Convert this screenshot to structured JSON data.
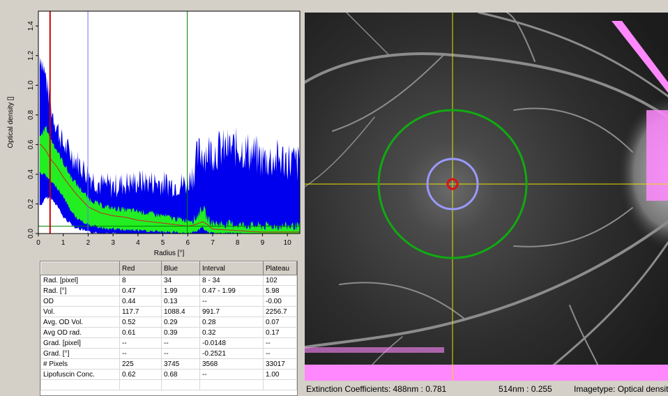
{
  "chart_data": {
    "type": "line",
    "xlabel": "Radius [°]",
    "ylabel": "Optical density []",
    "xlim": [
      0,
      10.5
    ],
    "ylim": [
      0,
      1.5
    ],
    "x_ticks": [
      "0",
      "1",
      "2",
      "3",
      "4",
      "5",
      "6",
      "7",
      "8",
      "9",
      "10"
    ],
    "y_ticks": [
      "0.0",
      "0.2",
      "0.4",
      "0.6",
      "0.8",
      "1.0",
      "1.2",
      "1.4"
    ],
    "grid": false,
    "markers": [
      {
        "x": 0.47,
        "color": "#cc0000"
      },
      {
        "x": 1.99,
        "color": "#7070ff"
      },
      {
        "x": 5.98,
        "color": "#008000"
      }
    ],
    "plateau_level": 0.05,
    "series": [
      {
        "color": "#0000ee",
        "x": [
          0.1,
          0.3,
          0.5,
          0.75,
          1,
          1.5,
          2,
          2.5,
          3,
          3.5,
          4,
          4.5,
          5,
          5.5,
          6,
          6.5,
          7,
          7.5,
          8,
          8.5,
          9,
          9.5,
          10,
          10.5
        ],
        "values": [
          1.2,
          1.05,
          0.85,
          0.72,
          0.6,
          0.5,
          0.4,
          0.33,
          0.32,
          0.34,
          0.35,
          0.35,
          0.34,
          0.33,
          0.34,
          0.55,
          0.56,
          0.57,
          0.58,
          0.55,
          0.5,
          0.5,
          0.5,
          0.46
        ]
      },
      {
        "color": "#0000ee",
        "x": [
          0.1,
          0.3,
          0.5,
          0.75,
          1,
          1.5,
          2,
          2.5,
          3,
          3.5,
          4,
          4.5,
          5,
          5.5,
          6,
          6.5,
          7,
          7.5,
          8,
          8.5,
          9,
          9.5,
          10,
          10.5
        ],
        "values": [
          0.2,
          0.25,
          0.25,
          0.2,
          0.12,
          0.05,
          0.02,
          0.01,
          0.01,
          0.0,
          0.0,
          0.0,
          0.0,
          0.0,
          0.0,
          0.0,
          0.0,
          0.0,
          0.0,
          0.0,
          0.0,
          0.0,
          0.0,
          0.0
        ]
      },
      {
        "color": "#22ee22",
        "x": [
          0.1,
          0.3,
          0.5,
          0.75,
          1,
          1.25,
          1.5,
          2,
          2.5,
          3,
          4,
          5,
          5.5,
          6,
          6.3,
          6.6,
          6.8,
          7,
          8,
          9,
          10,
          10.5
        ],
        "values": [
          0.66,
          0.72,
          0.64,
          0.56,
          0.48,
          0.4,
          0.34,
          0.24,
          0.19,
          0.17,
          0.15,
          0.12,
          0.1,
          0.09,
          0.1,
          0.18,
          0.1,
          0.07,
          0.06,
          0.05,
          0.05,
          0.05
        ]
      },
      {
        "color": "#22ee22",
        "x": [
          0.1,
          0.3,
          0.5,
          0.75,
          1,
          1.25,
          1.5,
          2,
          2.5,
          3,
          4,
          5,
          5.5,
          6,
          6.3,
          6.6,
          6.8,
          7,
          8,
          9,
          10,
          10.5
        ],
        "values": [
          0.42,
          0.4,
          0.36,
          0.32,
          0.26,
          0.18,
          0.12,
          0.07,
          0.05,
          0.04,
          0.03,
          0.02,
          0.02,
          0.01,
          0.02,
          0.05,
          0.02,
          0.01,
          0.01,
          0.0,
          0.0,
          0.0
        ]
      },
      {
        "color": "#cc2222",
        "x": [
          0.1,
          0.3,
          0.5,
          0.75,
          1,
          1.5,
          2,
          2.5,
          3,
          3.5,
          4,
          4.5,
          5,
          5.5,
          6,
          6.3,
          6.6,
          6.8,
          7,
          8,
          9,
          10,
          10.5
        ],
        "values": [
          0.6,
          0.56,
          0.5,
          0.45,
          0.38,
          0.27,
          0.18,
          0.14,
          0.12,
          0.11,
          0.09,
          0.08,
          0.07,
          0.06,
          0.05,
          0.06,
          0.08,
          0.06,
          0.03,
          0.02,
          0.01,
          0.01,
          0.01
        ]
      }
    ]
  },
  "table": {
    "headers": [
      "",
      "Red",
      "Blue",
      "Interval",
      "Plateau"
    ],
    "rows": [
      [
        "Rad. [pixel]",
        "8",
        "34",
        "8 - 34",
        "102"
      ],
      [
        "Rad. [°]",
        "0.47",
        "1.99",
        "0.47 - 1.99",
        "5.98"
      ],
      [
        "OD",
        "0.44",
        "0.13",
        "--",
        "-0.00"
      ],
      [
        "Vol.",
        "117.7",
        "1088.4",
        "991.7",
        "2256.7"
      ],
      [
        "Avg. OD Vol.",
        "0.52",
        "0.29",
        "0.28",
        "0.07"
      ],
      [
        "Avg OD rad.",
        "0.61",
        "0.39",
        "0.32",
        "0.17"
      ],
      [
        "Grad. [pixel]",
        "--",
        "--",
        "-0.0148",
        "--"
      ],
      [
        "Grad. [°]",
        "--",
        "--",
        "-0.2521",
        "--"
      ],
      [
        "# Pixels",
        "225",
        "3745",
        "3568",
        "33017"
      ],
      [
        "Lipofuscin Conc.",
        "0.62",
        "0.68",
        "--",
        "1.00"
      ]
    ]
  },
  "status": {
    "extinction": "Extinction Coefficients:  488nm : 0.781",
    "nm514": "514nm : 0.255",
    "imagetype": "Imagetype: Optical density"
  },
  "image": {
    "description_icon": "fundus-image",
    "crosshair_color": "#e8e000",
    "circle_colors": {
      "inner": "#dd1111",
      "middle": "#9a9aff",
      "outer": "#11aa11"
    },
    "artifact_color": "#ff88ff"
  }
}
